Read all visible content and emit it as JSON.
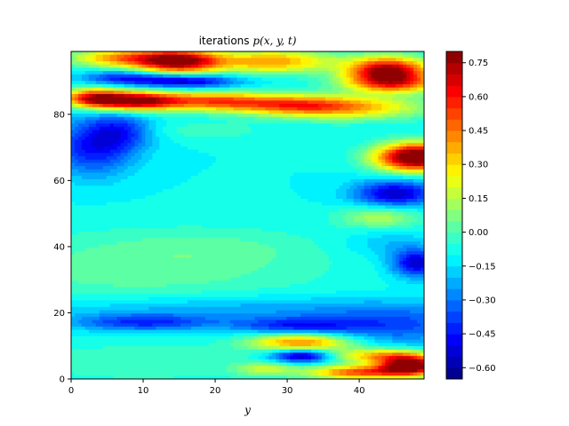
{
  "chart_data": {
    "type": "heatmap",
    "subtype": "filled-contour",
    "title": "iterations p(x, y, t)",
    "title_parts": {
      "prefix": "iterations ",
      "math": "p(x,  y,  t)"
    },
    "xlabel": "y",
    "ylabel": "",
    "xlim": [
      0,
      49
    ],
    "ylim": [
      0,
      99
    ],
    "xticks": [
      0,
      10,
      20,
      30,
      40
    ],
    "yticks": [
      0,
      20,
      40,
      60,
      80
    ],
    "xtick_labels": [
      "0",
      "10",
      "20",
      "30",
      "40"
    ],
    "ytick_labels": [
      "0",
      "20",
      "40",
      "60",
      "80"
    ],
    "colormap": "jet",
    "value_range": [
      -0.65,
      0.8
    ],
    "contour_levels": 29,
    "colorbar": {
      "ticks": [
        -0.6,
        -0.45,
        -0.3,
        -0.15,
        0.0,
        0.15,
        0.3,
        0.45,
        0.6,
        0.75
      ],
      "tick_labels": [
        "−0.60",
        "−0.45",
        "−0.30",
        "−0.15",
        "0.00",
        "0.15",
        "0.30",
        "0.45",
        "0.60",
        "0.75"
      ]
    },
    "grid": false,
    "background_value": -0.1,
    "features": [
      {
        "x": 15,
        "y": 96,
        "amp": 0.85,
        "sx": 4,
        "sy": 2.5
      },
      {
        "x": 7,
        "y": 97,
        "amp": 0.5,
        "sx": 5,
        "sy": 2
      },
      {
        "x": 28,
        "y": 96,
        "amp": 0.5,
        "sx": 6,
        "sy": 2.5
      },
      {
        "x": 44,
        "y": 93,
        "amp": 0.9,
        "sx": 4,
        "sy": 3
      },
      {
        "x": 45,
        "y": 89,
        "amp": 0.4,
        "sx": 5,
        "sy": 2
      },
      {
        "x": 7,
        "y": 91,
        "amp": -0.3,
        "sx": 4,
        "sy": 1.5
      },
      {
        "x": 16,
        "y": 90,
        "amp": -0.45,
        "sx": 5,
        "sy": 1.5
      },
      {
        "x": 9,
        "y": 84,
        "amp": 0.9,
        "sx": 4.5,
        "sy": 2
      },
      {
        "x": 3,
        "y": 85,
        "amp": 0.6,
        "sx": 3,
        "sy": 2
      },
      {
        "x": 20,
        "y": 84,
        "amp": 0.5,
        "sx": 5,
        "sy": 2
      },
      {
        "x": 30,
        "y": 83,
        "amp": 0.4,
        "sx": 6,
        "sy": 2
      },
      {
        "x": 38,
        "y": 82,
        "amp": 0.45,
        "sx": 8,
        "sy": 2.5
      },
      {
        "x": 3,
        "y": 70,
        "amp": -0.35,
        "sx": 4,
        "sy": 6
      },
      {
        "x": 7,
        "y": 75,
        "amp": -0.25,
        "sx": 3,
        "sy": 4
      },
      {
        "x": 19,
        "y": 75,
        "amp": 0.08,
        "sx": 6,
        "sy": 2
      },
      {
        "x": 48,
        "y": 67,
        "amp": 1.05,
        "sx": 4,
        "sy": 3
      },
      {
        "x": 45,
        "y": 56,
        "amp": -0.45,
        "sx": 4,
        "sy": 3
      },
      {
        "x": 43,
        "y": 49,
        "amp": 0.25,
        "sx": 4,
        "sy": 2.5
      },
      {
        "x": 48,
        "y": 35,
        "amp": -0.45,
        "sx": 2.5,
        "sy": 3
      },
      {
        "x": 44,
        "y": 41,
        "amp": -0.1,
        "sx": 4,
        "sy": 3
      },
      {
        "x": 10,
        "y": 33,
        "amp": 0.13,
        "sx": 18,
        "sy": 8
      },
      {
        "x": 20,
        "y": 40,
        "amp": 0.06,
        "sx": 10,
        "sy": 4
      },
      {
        "x": 10,
        "y": 17,
        "amp": -0.3,
        "sx": 7,
        "sy": 1.8
      },
      {
        "x": 31,
        "y": 16,
        "amp": -0.3,
        "sx": 6,
        "sy": 1.8
      },
      {
        "x": 45,
        "y": 16,
        "amp": -0.25,
        "sx": 8,
        "sy": 4
      },
      {
        "x": 22,
        "y": 21,
        "amp": -0.15,
        "sx": 20,
        "sy": 3
      },
      {
        "x": 10,
        "y": 5,
        "amp": 0.1,
        "sx": 12,
        "sy": 4
      },
      {
        "x": 32,
        "y": 11,
        "amp": 0.55,
        "sx": 5,
        "sy": 2
      },
      {
        "x": 32,
        "y": 7,
        "amp": -0.55,
        "sx": 3,
        "sy": 1.5
      },
      {
        "x": 43,
        "y": 7,
        "amp": 0.45,
        "sx": 5,
        "sy": 1.5
      },
      {
        "x": 47,
        "y": 4,
        "amp": 0.95,
        "sx": 3,
        "sy": 2
      },
      {
        "x": 40,
        "y": 2,
        "amp": 0.6,
        "sx": 5,
        "sy": 1.5
      },
      {
        "x": 27,
        "y": 3,
        "amp": 0.25,
        "sx": 3,
        "sy": 1.5
      }
    ]
  }
}
